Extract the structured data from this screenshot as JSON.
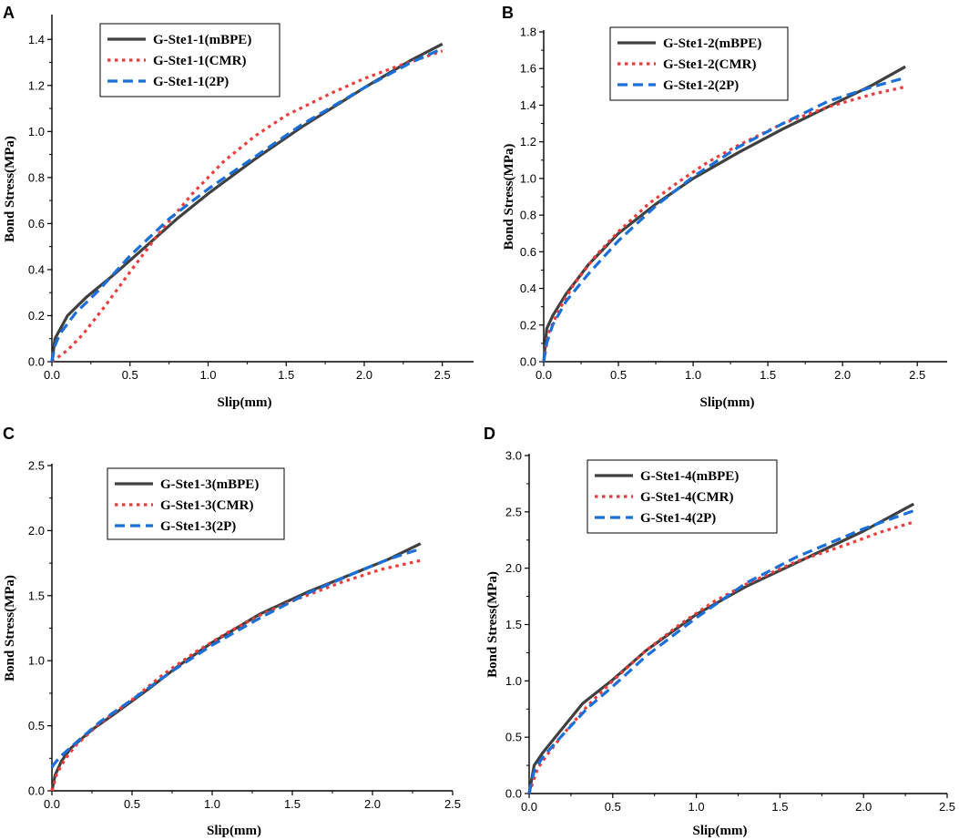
{
  "figure": {
    "series_colors": {
      "mBPE": "#404040",
      "CMR": "#ef3b3b",
      "2P": "#1a6fd8"
    }
  },
  "chart_data": [
    {
      "type": "line",
      "panel": "A",
      "xlabel": "Slip(mm)",
      "ylabel": "Bond Stress(MPa)",
      "xlim": [
        0,
        2.7
      ],
      "ylim": [
        0,
        1.5
      ],
      "xticks": [
        0.0,
        0.5,
        1.0,
        1.5,
        2.0,
        2.5
      ],
      "yticks": [
        0.0,
        0.2,
        0.4,
        0.6,
        0.8,
        1.0,
        1.2,
        1.4
      ],
      "xtick_labels": [
        "0.0",
        "0.5",
        "1.0",
        "1.5",
        "2.0",
        "2.5"
      ],
      "ytick_labels": [
        "0.0",
        "0.2",
        "0.4",
        "0.6",
        "0.8",
        "1.0",
        "1.2",
        "1.4"
      ],
      "legend_position": "top-center",
      "series": [
        {
          "name": "G-Ste1-1(mBPE)",
          "style": "solid",
          "color_key": "mBPE",
          "x": [
            0,
            0.02,
            0.1,
            0.22,
            0.4,
            0.6,
            0.8,
            1.0,
            1.3,
            1.6,
            2.0,
            2.3,
            2.5
          ],
          "y": [
            0,
            0.1,
            0.2,
            0.28,
            0.38,
            0.5,
            0.62,
            0.73,
            0.88,
            1.02,
            1.19,
            1.31,
            1.38
          ]
        },
        {
          "name": "G-Ste1-1(CMR)",
          "style": "dotted",
          "color_key": "CMR",
          "x": [
            0,
            0.1,
            0.2,
            0.35,
            0.5,
            0.7,
            0.9,
            1.1,
            1.3,
            1.5,
            1.8,
            2.0,
            2.2,
            2.5
          ],
          "y": [
            0,
            0.05,
            0.12,
            0.25,
            0.39,
            0.57,
            0.73,
            0.87,
            0.98,
            1.07,
            1.17,
            1.23,
            1.28,
            1.35
          ]
        },
        {
          "name": "G-Ste1-1(2P)",
          "style": "dashed",
          "color_key": "2P",
          "x": [
            0,
            0.02,
            0.05,
            0.15,
            0.3,
            0.5,
            0.75,
            1.0,
            1.3,
            1.6,
            2.0,
            2.3,
            2.5
          ],
          "y": [
            0,
            0.07,
            0.12,
            0.21,
            0.31,
            0.46,
            0.62,
            0.75,
            0.89,
            1.03,
            1.19,
            1.3,
            1.36
          ]
        }
      ]
    },
    {
      "type": "line",
      "panel": "B",
      "xlabel": "Slip(mm)",
      "ylabel": "Bond Stress(MPa)",
      "xlim": [
        0,
        2.7
      ],
      "ylim": [
        0,
        1.8
      ],
      "xticks": [
        0.0,
        0.5,
        1.0,
        1.5,
        2.0,
        2.5
      ],
      "yticks": [
        0.0,
        0.2,
        0.4,
        0.6,
        0.8,
        1.0,
        1.2,
        1.4,
        1.6,
        1.8
      ],
      "xtick_labels": [
        "0.0",
        "0.5",
        "1.0",
        "1.5",
        "2.0",
        "2.5"
      ],
      "ytick_labels": [
        "0.0",
        "0.2",
        "0.4",
        "0.6",
        "0.8",
        "1.0",
        "1.2",
        "1.4",
        "1.6",
        "1.8"
      ],
      "legend_position": "top-center",
      "series": [
        {
          "name": "G-Ste1-2(mBPE)",
          "style": "solid",
          "color_key": "mBPE",
          "x": [
            0,
            0.02,
            0.06,
            0.15,
            0.3,
            0.5,
            0.75,
            1.0,
            1.3,
            1.6,
            1.9,
            2.2,
            2.42
          ],
          "y": [
            0,
            0.18,
            0.25,
            0.37,
            0.53,
            0.7,
            0.86,
            1.0,
            1.14,
            1.27,
            1.39,
            1.51,
            1.61
          ]
        },
        {
          "name": "G-Ste1-2(CMR)",
          "style": "dotted",
          "color_key": "CMR",
          "x": [
            0,
            0.03,
            0.1,
            0.2,
            0.35,
            0.5,
            0.7,
            0.9,
            1.1,
            1.3,
            1.6,
            1.9,
            2.2,
            2.42
          ],
          "y": [
            0,
            0.15,
            0.28,
            0.42,
            0.58,
            0.71,
            0.86,
            0.98,
            1.09,
            1.18,
            1.3,
            1.39,
            1.46,
            1.5
          ]
        },
        {
          "name": "G-Ste1-2(2P)",
          "style": "dashed",
          "color_key": "2P",
          "x": [
            0,
            0.02,
            0.06,
            0.15,
            0.3,
            0.5,
            0.75,
            1.0,
            1.3,
            1.6,
            1.9,
            2.2,
            2.42
          ],
          "y": [
            0,
            0.1,
            0.2,
            0.33,
            0.48,
            0.66,
            0.85,
            1.01,
            1.17,
            1.3,
            1.42,
            1.5,
            1.55
          ]
        }
      ]
    },
    {
      "type": "line",
      "panel": "C",
      "xlabel": "Slip(mm)",
      "ylabel": "Bond Stress(MPa)",
      "xlim": [
        0,
        2.5
      ],
      "ylim": [
        0,
        2.5
      ],
      "xticks": [
        0.0,
        0.5,
        1.0,
        1.5,
        2.0,
        2.5
      ],
      "yticks": [
        0.0,
        0.5,
        1.0,
        1.5,
        2.0,
        2.5
      ],
      "xtick_labels": [
        "0.0",
        "0.5",
        "1.0",
        "1.5",
        "2.0",
        "2.5"
      ],
      "ytick_labels": [
        "0.0",
        "0.5",
        "1.0",
        "1.5",
        "2.0",
        "2.5"
      ],
      "legend_position": "top-center",
      "series": [
        {
          "name": "G-Ste1-3(mBPE)",
          "style": "solid",
          "color_key": "mBPE",
          "x": [
            0,
            0.02,
            0.06,
            0.12,
            0.25,
            0.4,
            0.6,
            0.8,
            1.0,
            1.3,
            1.6,
            1.9,
            2.1,
            2.3
          ],
          "y": [
            0,
            0.12,
            0.23,
            0.33,
            0.47,
            0.6,
            0.78,
            0.97,
            1.14,
            1.36,
            1.53,
            1.68,
            1.78,
            1.9
          ]
        },
        {
          "name": "G-Ste1-3(CMR)",
          "style": "dotted",
          "color_key": "CMR",
          "x": [
            0,
            0.03,
            0.08,
            0.15,
            0.3,
            0.5,
            0.7,
            0.9,
            1.1,
            1.3,
            1.5,
            1.8,
            2.05,
            2.3
          ],
          "y": [
            0,
            0.13,
            0.24,
            0.35,
            0.52,
            0.7,
            0.9,
            1.07,
            1.22,
            1.35,
            1.46,
            1.6,
            1.7,
            1.77
          ]
        },
        {
          "name": "G-Ste1-3(2P)",
          "style": "dashed",
          "color_key": "2P",
          "x": [
            0,
            0.01,
            0.05,
            0.15,
            0.3,
            0.5,
            0.75,
            1.0,
            1.3,
            1.6,
            1.9,
            2.1,
            2.3
          ],
          "y": [
            0.18,
            0.2,
            0.26,
            0.37,
            0.53,
            0.7,
            0.92,
            1.12,
            1.33,
            1.52,
            1.68,
            1.78,
            1.86
          ]
        }
      ]
    },
    {
      "type": "line",
      "panel": "D",
      "xlabel": "Slip(mm)",
      "ylabel": "Bond Stress(MPa)",
      "xlim": [
        0,
        2.5
      ],
      "ylim": [
        0,
        3.0
      ],
      "xticks": [
        0.0,
        0.5,
        1.0,
        1.5,
        2.0,
        2.5
      ],
      "yticks": [
        0.0,
        0.5,
        1.0,
        1.5,
        2.0,
        2.5,
        3.0
      ],
      "xtick_labels": [
        "0.0",
        "0.5",
        "1.0",
        "1.5",
        "2.0",
        "2.5"
      ],
      "ytick_labels": [
        "0.0",
        "0.5",
        "1.0",
        "1.5",
        "2.0",
        "2.5",
        "3.0"
      ],
      "legend_position": "top-center",
      "series": [
        {
          "name": "G-Ste1-4(mBPE)",
          "style": "solid",
          "color_key": "mBPE",
          "x": [
            0,
            0.03,
            0.08,
            0.2,
            0.32,
            0.5,
            0.7,
            1.0,
            1.3,
            1.6,
            2.0,
            2.3
          ],
          "y": [
            0,
            0.25,
            0.36,
            0.58,
            0.8,
            1.01,
            1.27,
            1.59,
            1.84,
            2.05,
            2.33,
            2.57
          ]
        },
        {
          "name": "G-Ste1-4(CMR)",
          "style": "dotted",
          "color_key": "CMR",
          "x": [
            0,
            0.05,
            0.1,
            0.2,
            0.35,
            0.5,
            0.7,
            0.9,
            1.1,
            1.3,
            1.6,
            1.9,
            2.1,
            2.3
          ],
          "y": [
            0,
            0.22,
            0.33,
            0.52,
            0.78,
            1.0,
            1.27,
            1.5,
            1.7,
            1.86,
            2.06,
            2.21,
            2.32,
            2.41
          ]
        },
        {
          "name": "G-Ste1-4(2P)",
          "style": "dashed",
          "color_key": "2P",
          "x": [
            0,
            0.03,
            0.08,
            0.2,
            0.35,
            0.5,
            0.7,
            1.0,
            1.3,
            1.6,
            2.0,
            2.3
          ],
          "y": [
            0,
            0.2,
            0.32,
            0.52,
            0.76,
            0.95,
            1.22,
            1.56,
            1.87,
            2.1,
            2.35,
            2.51
          ]
        }
      ]
    }
  ]
}
